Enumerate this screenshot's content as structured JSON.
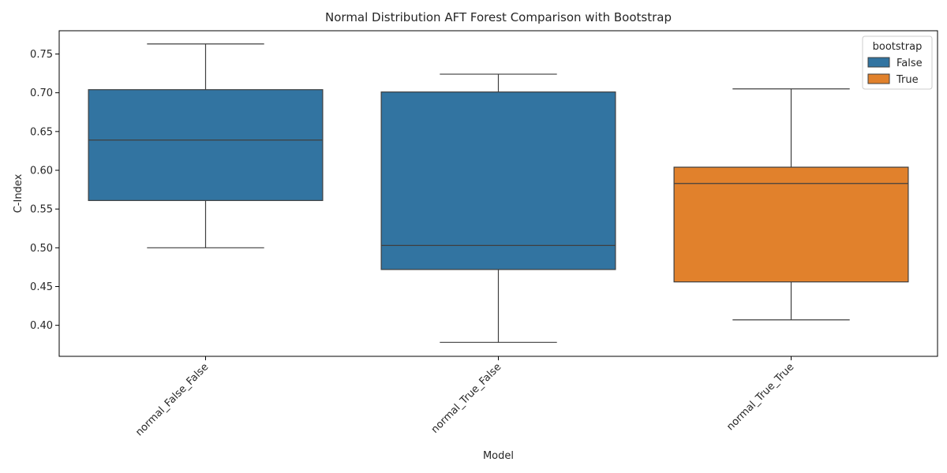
{
  "chart_data": {
    "type": "box",
    "title": "Normal Distribution AFT Forest Comparison with Bootstrap",
    "xlabel": "Model",
    "ylabel": "C-Index",
    "ylim": [
      0.36,
      0.78
    ],
    "yticks": [
      0.4,
      0.45,
      0.5,
      0.55,
      0.6,
      0.65,
      0.7,
      0.75
    ],
    "categories": [
      "normal_False_False",
      "normal_True_False",
      "normal_True_True"
    ],
    "legend": {
      "title": "bootstrap",
      "position": "top-right",
      "entries": [
        {
          "label": "False",
          "color": "#3274a1"
        },
        {
          "label": "True",
          "color": "#e1812c"
        }
      ]
    },
    "boxes": [
      {
        "category": "normal_False_False",
        "hue": "False",
        "whisker_low": 0.5,
        "q1": 0.561,
        "median": 0.639,
        "q3": 0.704,
        "whisker_high": 0.763
      },
      {
        "category": "normal_True_False",
        "hue": "False",
        "whisker_low": 0.378,
        "q1": 0.472,
        "median": 0.503,
        "q3": 0.701,
        "whisker_high": 0.724
      },
      {
        "category": "normal_True_True",
        "hue": "True",
        "whisker_low": 0.407,
        "q1": 0.456,
        "median": 0.583,
        "q3": 0.604,
        "whisker_high": 0.705
      }
    ],
    "grid": false
  }
}
